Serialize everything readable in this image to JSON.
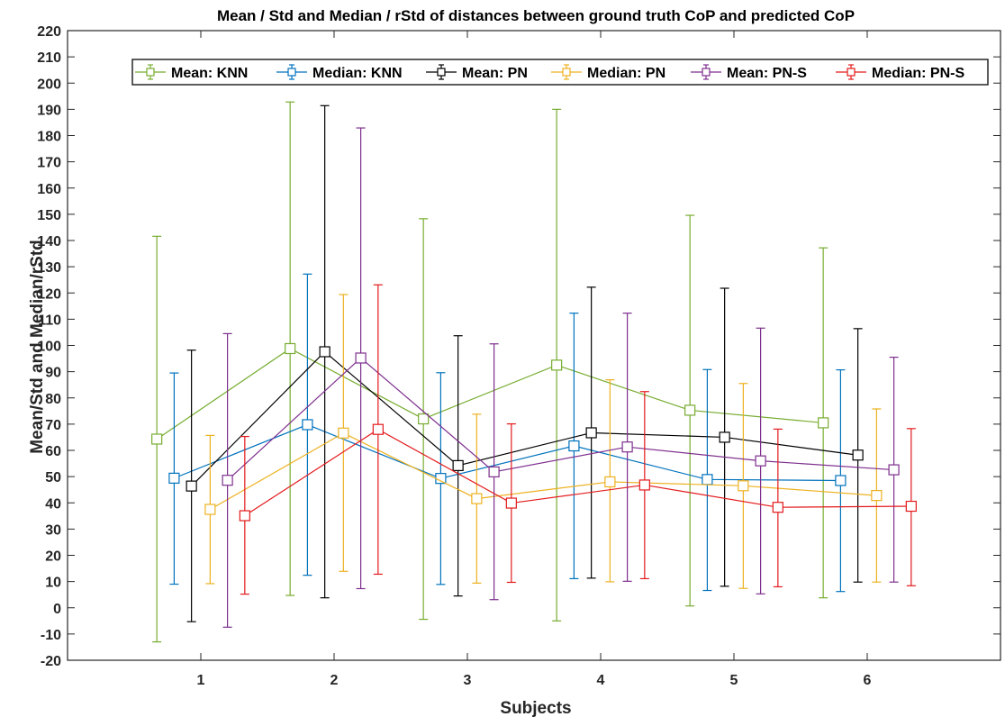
{
  "chart_data": {
    "type": "line",
    "title": "Mean / Std and Median / rStd of distances between ground truth CoP and predicted CoP",
    "xlabel": "Subjects",
    "ylabel": "Mean/Std and Median/rStd",
    "xlim": [
      0,
      7
    ],
    "ylim": [
      -20,
      220
    ],
    "xticks": [
      1,
      2,
      3,
      4,
      5,
      6
    ],
    "yticks": [
      -20,
      -10,
      0,
      10,
      20,
      30,
      40,
      50,
      60,
      70,
      80,
      90,
      100,
      110,
      120,
      130,
      140,
      150,
      160,
      170,
      180,
      190,
      200,
      210,
      220
    ],
    "grid": false,
    "legend_position": "top",
    "marker": "square",
    "series": [
      {
        "name": "Mean: KNN",
        "color": "#77ac30",
        "offset": -0.33,
        "values": [
          64.3,
          98.8,
          72.0,
          92.5,
          75.3,
          70.5
        ],
        "lower": [
          -13.0,
          4.7,
          -4.4,
          -5.0,
          0.7,
          3.8
        ],
        "upper": [
          141.6,
          192.8,
          148.3,
          190.0,
          149.6,
          137.2
        ]
      },
      {
        "name": "Median: KNN",
        "color": "#0072bd",
        "offset": -0.2,
        "values": [
          49.4,
          69.8,
          49.3,
          61.7,
          48.9,
          48.5
        ],
        "lower": [
          9.0,
          12.4,
          8.9,
          11.1,
          6.6,
          6.2
        ],
        "upper": [
          89.5,
          127.2,
          89.6,
          112.3,
          90.8,
          90.7
        ]
      },
      {
        "name": "Mean: PN",
        "color": "#000000",
        "offset": -0.07,
        "values": [
          46.4,
          97.6,
          54.2,
          66.7,
          65.0,
          58.2
        ],
        "lower": [
          -5.3,
          3.8,
          4.5,
          11.3,
          8.2,
          9.8
        ],
        "upper": [
          98.2,
          191.4,
          103.7,
          122.2,
          121.8,
          106.4
        ]
      },
      {
        "name": "Median: PN",
        "color": "#edb120",
        "offset": 0.07,
        "values": [
          37.5,
          66.6,
          41.6,
          48.0,
          46.5,
          42.8
        ],
        "lower": [
          9.2,
          13.9,
          9.4,
          9.9,
          7.4,
          9.8
        ],
        "upper": [
          65.7,
          119.4,
          73.8,
          86.9,
          85.5,
          75.8
        ]
      },
      {
        "name": "Mean: PN-S",
        "color": "#7e2f8e",
        "offset": 0.2,
        "values": [
          48.6,
          95.2,
          51.8,
          61.3,
          56.0,
          52.6
        ],
        "lower": [
          -7.4,
          7.3,
          3.1,
          10.1,
          5.3,
          9.8
        ],
        "upper": [
          104.5,
          182.9,
          100.6,
          112.3,
          106.6,
          95.5
        ]
      },
      {
        "name": "Median: PN-S",
        "color": "#e31a1c",
        "offset": 0.33,
        "values": [
          35.1,
          68.0,
          39.9,
          46.8,
          38.3,
          38.7
        ],
        "lower": [
          5.2,
          12.8,
          9.7,
          11.1,
          8.0,
          8.4
        ],
        "upper": [
          65.3,
          123.1,
          70.1,
          82.4,
          68.1,
          68.3
        ]
      }
    ]
  }
}
